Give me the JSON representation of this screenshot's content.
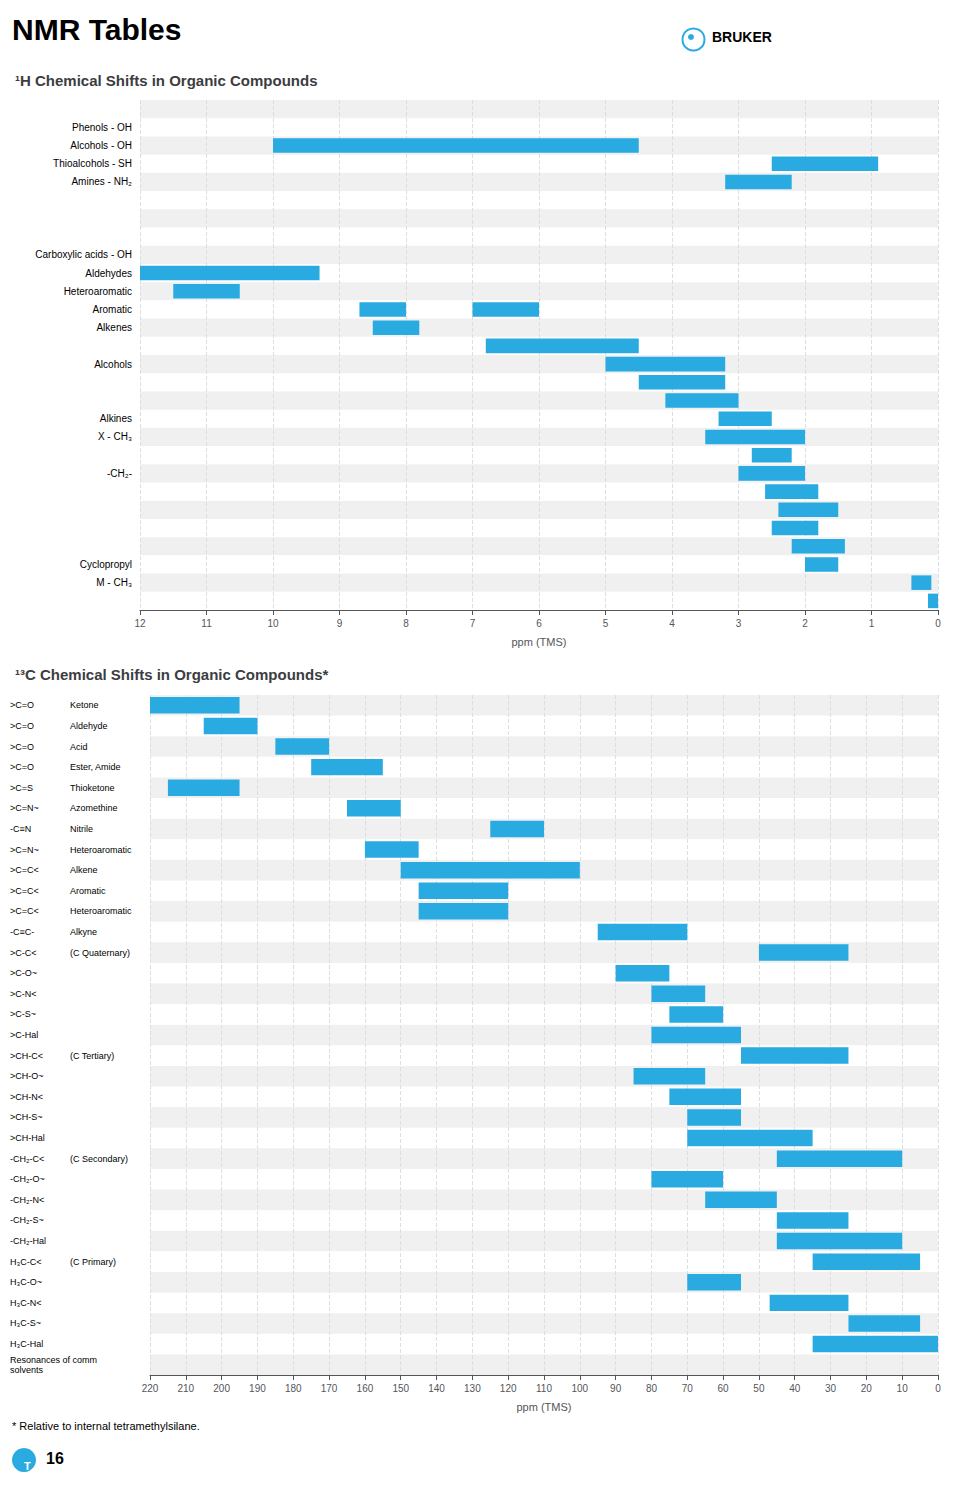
{
  "chart_data": [
    {
      "type": "bar",
      "orientation": "horizontal",
      "title": "¹H Chemical Shifts in Organic Compounds",
      "annotations": [
        "NMR Tables",
        "BRUKER"
      ],
      "xlabel": "ppm (TMS)",
      "color": "#29ABE2",
      "grid": true,
      "xlim": [
        12,
        0
      ],
      "xticks": [
        12,
        11,
        10,
        9,
        8,
        7,
        6,
        5,
        4,
        3,
        2,
        1,
        0
      ],
      "categories": [
        null,
        "Phenols - OH",
        "Alcohols - OH",
        "Thioalcohols - SH",
        "Amines - NH₂",
        null,
        null,
        null,
        "Carboxylic acids - OH",
        "Aldehydes",
        "Heteroaromatic",
        "Aromatic",
        "Alkenes",
        null,
        "Alcohols",
        null,
        null,
        "Alkines",
        "X - CH₃",
        null,
        "-CH₂-",
        null,
        null,
        null,
        null,
        "Cyclopropyl",
        "M - CH₃",
        null
      ],
      "values": [
        [],
        [],
        [
          [
            4.5,
            10.0
          ]
        ],
        [
          [
            0.9,
            2.5
          ]
        ],
        [
          [
            2.2,
            3.2
          ]
        ],
        [],
        [],
        [],
        [],
        [
          [
            9.3,
            12.0
          ]
        ],
        [
          [
            10.5,
            11.5
          ]
        ],
        [
          [
            8.0,
            8.7
          ],
          [
            6.0,
            7.0
          ]
        ],
        [
          [
            7.8,
            8.5
          ]
        ],
        [
          [
            4.5,
            6.8
          ]
        ],
        [
          [
            3.2,
            5.0
          ]
        ],
        [
          [
            3.2,
            4.5
          ]
        ],
        [
          [
            3.0,
            4.1
          ]
        ],
        [
          [
            2.5,
            3.3
          ]
        ],
        [
          [
            2.0,
            3.5
          ]
        ],
        [
          [
            2.2,
            2.8
          ]
        ],
        [
          [
            2.0,
            3.0
          ]
        ],
        [
          [
            1.8,
            2.6
          ]
        ],
        [
          [
            1.5,
            2.4
          ]
        ],
        [
          [
            1.8,
            2.5
          ]
        ],
        [
          [
            1.4,
            2.2
          ]
        ],
        [
          [
            1.5,
            2.0
          ]
        ],
        [
          [
            0.1,
            0.4
          ]
        ],
        [
          [
            0.0,
            0.15
          ]
        ]
      ]
    },
    {
      "type": "bar",
      "orientation": "horizontal",
      "title": "¹³C Chemical Shifts in Organic Compounds*",
      "annotations": [
        "* Relative to internal tetramethylsilane.",
        "T",
        "16"
      ],
      "xlabel": "ppm (TMS)",
      "color": "#29ABE2",
      "grid": true,
      "xlim": [
        220,
        0
      ],
      "xticks": [
        220,
        210,
        200,
        190,
        180,
        170,
        160,
        150,
        140,
        130,
        120,
        110,
        100,
        90,
        80,
        70,
        60,
        50,
        40,
        30,
        20,
        10,
        0
      ],
      "categories": [
        ">C=O",
        ">C=O",
        ">C=O",
        ">C=O",
        ">C=S",
        ">C=N~",
        "-C≡N",
        ">C=N~",
        ">C=C<",
        ">C=C<",
        ">C=C<",
        "-C≡C-",
        ">C-C<",
        ">C-O~",
        ">C-N<",
        ">C-S~",
        ">C-Hal",
        ">CH-C<",
        ">CH-O~",
        ">CH-N<",
        ">CH-S~",
        ">CH-Hal",
        "-CH₂-C<",
        "-CH₂-O~",
        "-CH₂-N<",
        "-CH₂-S~",
        "-CH₂-Hal",
        "H₃C-C<",
        "H₃C-O~",
        "H₃C-N<",
        "H₃C-S~",
        "H₃C-Hal",
        "Resonances of comm\nsolvents"
      ],
      "sublabels": [
        "Ketone",
        "Aldehyde",
        "Acid",
        "Ester, Amide",
        "Thioketone",
        "Azomethine",
        "Nitrile",
        "Heteroaromatic",
        "Alkene",
        "Aromatic",
        "Heteroaromatic",
        "Alkyne",
        "(C Quaternary)",
        null,
        null,
        null,
        null,
        "(C Tertiary)",
        null,
        null,
        null,
        null,
        "(C Secondary)",
        null,
        null,
        null,
        null,
        "(C Primary)",
        null,
        null,
        null,
        null,
        null
      ],
      "values": [
        [
          [
            195,
            220
          ]
        ],
        [
          [
            190,
            205
          ]
        ],
        [
          [
            170,
            185
          ]
        ],
        [
          [
            155,
            175
          ]
        ],
        [
          [
            195,
            215
          ]
        ],
        [
          [
            150,
            165
          ]
        ],
        [
          [
            110,
            125
          ]
        ],
        [
          [
            145,
            160
          ]
        ],
        [
          [
            100,
            150
          ]
        ],
        [
          [
            120,
            145
          ]
        ],
        [
          [
            120,
            145
          ]
        ],
        [
          [
            70,
            95
          ]
        ],
        [
          [
            25,
            50
          ]
        ],
        [
          [
            75,
            90
          ]
        ],
        [
          [
            65,
            80
          ]
        ],
        [
          [
            60,
            75
          ]
        ],
        [
          [
            55,
            80
          ]
        ],
        [
          [
            25,
            55
          ]
        ],
        [
          [
            65,
            85
          ]
        ],
        [
          [
            55,
            75
          ]
        ],
        [
          [
            55,
            70
          ]
        ],
        [
          [
            35,
            70
          ]
        ],
        [
          [
            10,
            45
          ]
        ],
        [
          [
            60,
            80
          ]
        ],
        [
          [
            45,
            65
          ]
        ],
        [
          [
            25,
            45
          ]
        ],
        [
          [
            10,
            45
          ]
        ],
        [
          [
            5,
            35
          ]
        ],
        [
          [
            55,
            70
          ]
        ],
        [
          [
            25,
            47
          ]
        ],
        [
          [
            5,
            25
          ]
        ],
        [
          [
            0,
            35
          ]
        ],
        []
      ]
    }
  ]
}
